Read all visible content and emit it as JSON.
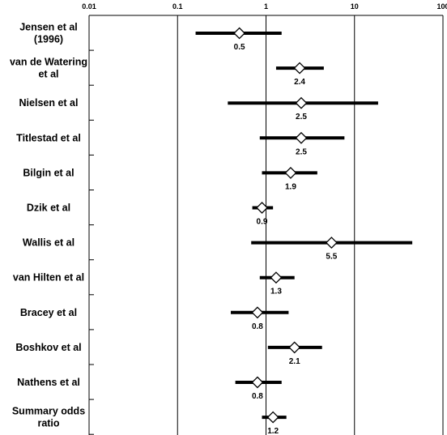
{
  "chart_data": {
    "type": "forest",
    "x_scale": "log",
    "xlim": [
      0.01,
      100
    ],
    "x_ticks": [
      {
        "value": 0.01,
        "label": "0.01"
      },
      {
        "value": 0.1,
        "label": "0.1"
      },
      {
        "value": 1,
        "label": "1"
      },
      {
        "value": 10,
        "label": "10"
      },
      {
        "value": 100,
        "label": "100"
      }
    ],
    "grid": "vertical",
    "rows": [
      {
        "label": [
          "Jensen et al",
          "(1996)"
        ],
        "estimate": 0.5,
        "lower": 0.16,
        "upper": 1.5,
        "value_label": "0.5"
      },
      {
        "label": [
          "van de Watering",
          "et al"
        ],
        "estimate": 2.4,
        "lower": 1.3,
        "upper": 4.5,
        "value_label": "2.4"
      },
      {
        "label": [
          "Nielsen et al"
        ],
        "estimate": 2.5,
        "lower": 0.37,
        "upper": 18.5,
        "value_label": "2.5"
      },
      {
        "label": [
          "Titlestad et al"
        ],
        "estimate": 2.5,
        "lower": 0.85,
        "upper": 7.7,
        "value_label": "2.5"
      },
      {
        "label": [
          "Bilgin et al"
        ],
        "estimate": 1.9,
        "lower": 0.9,
        "upper": 3.8,
        "value_label": "1.9"
      },
      {
        "label": [
          "Dzik et al"
        ],
        "estimate": 0.9,
        "lower": 0.7,
        "upper": 1.2,
        "value_label": "0.9"
      },
      {
        "label": [
          "Wallis et al"
        ],
        "estimate": 5.5,
        "lower": 0.68,
        "upper": 45,
        "value_label": "5.5"
      },
      {
        "label": [
          "van Hilten et al"
        ],
        "estimate": 1.3,
        "lower": 0.85,
        "upper": 2.1,
        "value_label": "1.3"
      },
      {
        "label": [
          "Bracey et al"
        ],
        "estimate": 0.8,
        "lower": 0.4,
        "upper": 1.8,
        "value_label": "0.8"
      },
      {
        "label": [
          "Boshkov et al"
        ],
        "estimate": 2.1,
        "lower": 1.05,
        "upper": 4.3,
        "value_label": "2.1"
      },
      {
        "label": [
          "Nathens et al"
        ],
        "estimate": 0.8,
        "lower": 0.45,
        "upper": 1.5,
        "value_label": "0.8"
      },
      {
        "label": [
          "Summary odds",
          "ratio"
        ],
        "estimate": 1.2,
        "lower": 0.9,
        "upper": 1.7,
        "value_label": "1.2"
      }
    ]
  }
}
